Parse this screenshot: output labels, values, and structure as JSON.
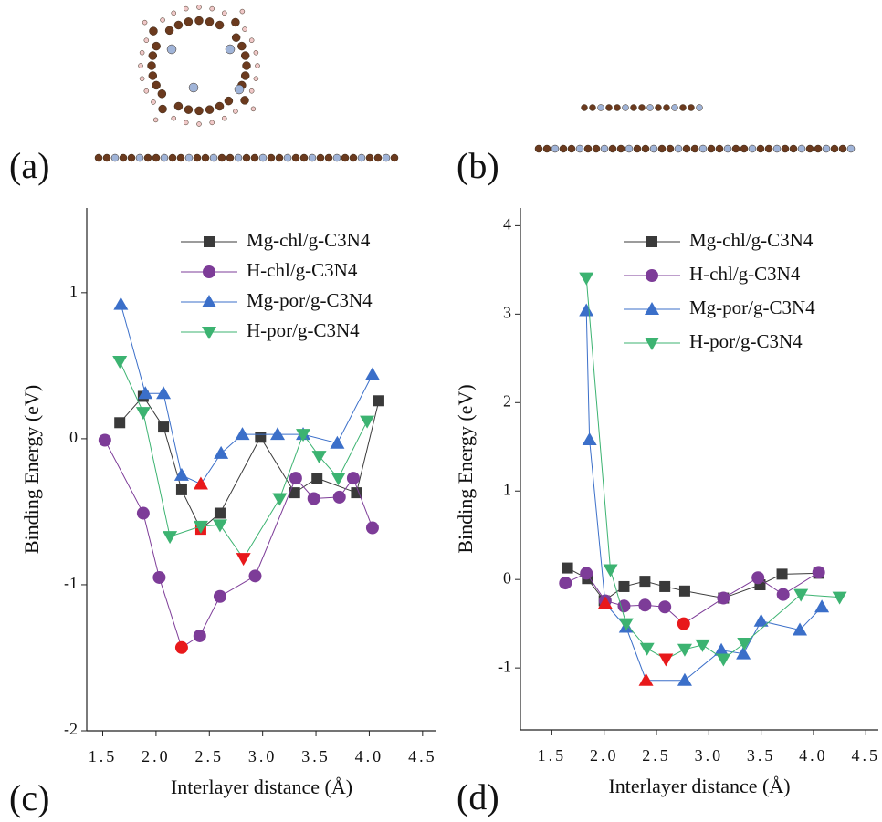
{
  "figure_labels": [
    "(a)",
    "(b)"
  ],
  "chart_data": [
    {
      "type": "line",
      "panel_label": "(c)",
      "x_label": "Interlayer distance (Å)",
      "y_label": "Binding Energy (eV)",
      "xlim": [
        1.35,
        4.63
      ],
      "ylim": [
        -2,
        1.58
      ],
      "xticks": [
        {
          "value": 1.5,
          "label": "1.5"
        },
        {
          "value": 2,
          "label": "2.0"
        },
        {
          "value": 2.5,
          "label": "2.5"
        },
        {
          "value": 3,
          "label": "3.0"
        },
        {
          "value": 3.5,
          "label": "3.5"
        },
        {
          "value": 4,
          "label": "4.0"
        },
        {
          "value": 4.5,
          "label": "4.5"
        }
      ],
      "yticks": [
        -2,
        -1,
        0,
        1
      ],
      "highlight_color": "#e8191b",
      "series": [
        {
          "name": "Mg-chl/g-C3N4",
          "color": "#3a3a3a",
          "marker": "square",
          "highlight": [
            4
          ],
          "x": [
            1.66,
            1.88,
            2.07,
            2.24,
            2.42,
            2.6,
            2.98,
            3.3,
            3.51,
            3.88,
            4.09
          ],
          "values": [
            0.11,
            0.29,
            0.08,
            -0.35,
            -0.62,
            -0.51,
            0.01,
            -0.37,
            -0.27,
            -0.37,
            0.26
          ]
        },
        {
          "name": "H-chl/g-C3N4",
          "color": "#7d3c98",
          "marker": "circle",
          "highlight": [
            3
          ],
          "x": [
            1.52,
            1.88,
            2.03,
            2.24,
            2.41,
            2.6,
            2.93,
            3.31,
            3.48,
            3.72,
            3.85,
            4.03
          ],
          "values": [
            -0.01,
            -0.51,
            -0.95,
            -1.43,
            -1.35,
            -1.08,
            -0.94,
            -0.27,
            -0.41,
            -0.4,
            -0.27,
            -0.61
          ]
        },
        {
          "name": "Mg-por/g-C3N4",
          "color": "#3b6fc9",
          "marker": "up",
          "highlight": [
            4
          ],
          "x": [
            1.67,
            1.9,
            2.07,
            2.24,
            2.42,
            2.61,
            2.81,
            3.14,
            3.38,
            3.7,
            4.03
          ],
          "values": [
            0.92,
            0.31,
            0.31,
            -0.25,
            -0.31,
            -0.1,
            0.03,
            0.03,
            0.03,
            -0.03,
            0.44
          ]
        },
        {
          "name": "H-por/g-C3N4",
          "color": "#3cb371",
          "marker": "down",
          "highlight": [
            5
          ],
          "x": [
            1.66,
            1.88,
            2.13,
            2.42,
            2.6,
            2.82,
            3.16,
            3.38,
            3.53,
            3.71,
            3.98
          ],
          "values": [
            0.53,
            0.18,
            -0.67,
            -0.6,
            -0.59,
            -0.82,
            -0.41,
            0.03,
            -0.12,
            -0.27,
            0.12
          ]
        }
      ]
    },
    {
      "type": "line",
      "panel_label": "(d)",
      "x_label": "Interlayer distance (Å)",
      "y_label": "Binding Energy (eV)",
      "xlim": [
        1.2,
        4.62
      ],
      "ylim": [
        -1.7,
        4.2
      ],
      "xticks": [
        {
          "value": 1.5,
          "label": "1.5"
        },
        {
          "value": 2,
          "label": "2.0"
        },
        {
          "value": 2.5,
          "label": "2.5"
        },
        {
          "value": 3,
          "label": "3.0"
        },
        {
          "value": 3.5,
          "label": "3.5"
        },
        {
          "value": 4,
          "label": "4.0"
        },
        {
          "value": 4.5,
          "label": "4.5"
        }
      ],
      "yticks": [
        -1,
        0,
        1,
        2,
        3,
        4
      ],
      "highlight_color": "#e8191b",
      "series": [
        {
          "name": "Mg-chl/g-C3N4",
          "color": "#3a3a3a",
          "marker": "square",
          "highlight": [],
          "x": [
            1.65,
            1.84,
            2.0,
            2.19,
            2.39,
            2.58,
            2.77,
            3.14,
            3.49,
            3.7,
            4.05
          ],
          "values": [
            0.13,
            0.01,
            -0.24,
            -0.08,
            -0.02,
            -0.08,
            -0.13,
            -0.21,
            -0.06,
            0.06,
            0.07
          ]
        },
        {
          "name": "H-chl/g-C3N4",
          "color": "#7d3c98",
          "marker": "circle",
          "highlight": [
            6
          ],
          "x": [
            1.63,
            1.83,
            2.01,
            2.19,
            2.39,
            2.58,
            2.76,
            3.14,
            3.47,
            3.71,
            4.05
          ],
          "values": [
            -0.04,
            0.07,
            -0.24,
            -0.3,
            -0.29,
            -0.31,
            -0.5,
            -0.21,
            0.02,
            -0.17,
            0.08
          ]
        },
        {
          "name": "Mg-por/g-C3N4",
          "color": "#3b6fc9",
          "marker": "up",
          "highlight": [
            2,
            4
          ],
          "x": [
            1.83,
            1.86,
            2.01,
            2.21,
            2.4,
            2.77,
            3.12,
            3.33,
            3.5,
            3.87,
            4.08
          ],
          "values": [
            3.04,
            1.58,
            -0.27,
            -0.54,
            -1.14,
            -1.14,
            -0.8,
            -0.84,
            -0.47,
            -0.57,
            -0.31
          ]
        },
        {
          "name": "H-por/g-C3N4",
          "color": "#3cb371",
          "marker": "down",
          "highlight": [
            4
          ],
          "x": [
            1.83,
            2.06,
            2.21,
            2.41,
            2.59,
            2.77,
            2.94,
            3.14,
            3.34,
            3.88,
            4.25
          ],
          "values": [
            3.41,
            0.11,
            -0.5,
            -0.78,
            -0.9,
            -0.79,
            -0.74,
            -0.9,
            -0.72,
            -0.17,
            -0.2
          ]
        }
      ]
    }
  ]
}
